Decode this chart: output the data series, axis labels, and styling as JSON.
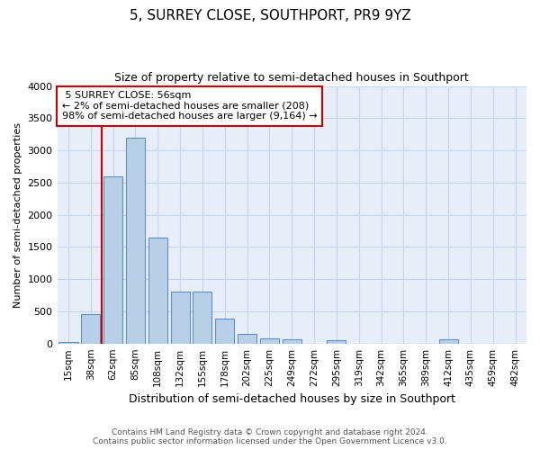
{
  "title": "5, SURREY CLOSE, SOUTHPORT, PR9 9YZ",
  "subtitle": "Size of property relative to semi-detached houses in Southport",
  "xlabel": "Distribution of semi-detached houses by size in Southport",
  "ylabel": "Number of semi-detached properties",
  "property_label": "5 SURREY CLOSE: 56sqm",
  "pct_smaller": 2,
  "pct_larger": 98,
  "count_smaller": 208,
  "count_larger": 9164,
  "bar_categories": [
    "15sqm",
    "38sqm",
    "62sqm",
    "85sqm",
    "108sqm",
    "132sqm",
    "155sqm",
    "178sqm",
    "202sqm",
    "225sqm",
    "249sqm",
    "272sqm",
    "295sqm",
    "319sqm",
    "342sqm",
    "365sqm",
    "389sqm",
    "412sqm",
    "435sqm",
    "459sqm",
    "482sqm"
  ],
  "bar_values": [
    20,
    450,
    2600,
    3200,
    1640,
    810,
    810,
    390,
    155,
    80,
    60,
    0,
    55,
    0,
    0,
    0,
    0,
    70,
    0,
    0,
    0
  ],
  "bar_color": "#b8cfe8",
  "bar_edge_color": "#6090c0",
  "vline_color": "#cc0000",
  "vline_x_index": 2.0,
  "ylim": [
    0,
    4000
  ],
  "yticks": [
    0,
    500,
    1000,
    1500,
    2000,
    2500,
    3000,
    3500,
    4000
  ],
  "grid_color": "#c8d4e8",
  "bg_color": "#e8eef8",
  "annotation_box_color": "#cc0000",
  "footer_line1": "Contains HM Land Registry data © Crown copyright and database right 2024.",
  "footer_line2": "Contains public sector information licensed under the Open Government Licence v3.0."
}
